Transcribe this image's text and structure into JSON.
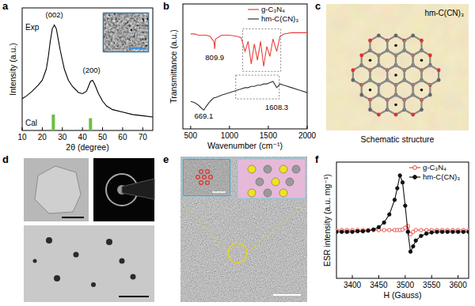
{
  "panel_labels": [
    "a",
    "b",
    "c",
    "d",
    "e",
    "f"
  ],
  "schematic": {
    "title": "hm-C(CN)₃",
    "caption": "Schematic structure"
  },
  "chart_data": [
    {
      "type": "line",
      "x_label": "2θ (degree)",
      "y_label": "Intensity (a.u.)",
      "xlim": [
        10,
        75
      ],
      "xticks": [
        10,
        20,
        30,
        40,
        50,
        60,
        70
      ],
      "ylim": [
        0,
        1
      ],
      "tick_labels": "x",
      "series": [
        {
          "name": "Exp",
          "type": "line",
          "color": "#000000",
          "x": [
            10,
            12,
            15,
            18,
            20,
            22,
            23,
            24,
            25,
            26,
            27,
            28,
            29,
            31,
            33,
            35,
            38,
            40,
            42,
            43,
            44,
            45,
            46,
            47,
            48,
            50,
            52,
            55,
            60,
            65,
            70,
            75
          ],
          "values": [
            0.26,
            0.28,
            0.32,
            0.37,
            0.41,
            0.5,
            0.6,
            0.73,
            0.83,
            0.86,
            0.83,
            0.74,
            0.65,
            0.5,
            0.41,
            0.36,
            0.31,
            0.3,
            0.32,
            0.36,
            0.4,
            0.41,
            0.38,
            0.34,
            0.3,
            0.24,
            0.2,
            0.17,
            0.15,
            0.13,
            0.12,
            0.11
          ]
        },
        {
          "name": "Cal",
          "type": "bar",
          "color": "#6cbf3f",
          "x": [
            25.5,
            44
          ],
          "values": [
            0.13,
            0.1
          ]
        }
      ],
      "annotations": [
        {
          "text": "(002)",
          "x": 26,
          "y": 0.92
        },
        {
          "text": "(200)",
          "x": 44.5,
          "y": 0.47
        }
      ]
    },
    {
      "type": "line",
      "x_label": "Wavenumber (cm⁻¹)",
      "y_label": "Transmittance (a.u.)",
      "xlim": [
        400,
        2000
      ],
      "xticks": [
        500,
        1000,
        1500,
        2000
      ],
      "ylim": [
        0,
        1
      ],
      "tick_labels": "x",
      "legend": "upper right",
      "x": [
        500,
        550,
        600,
        650,
        669.1,
        700,
        750,
        800,
        809.9,
        820,
        900,
        1000,
        1100,
        1150,
        1200,
        1240,
        1280,
        1320,
        1360,
        1400,
        1440,
        1480,
        1520,
        1560,
        1608.3,
        1650,
        1700,
        1800,
        1900,
        2000
      ],
      "series": [
        {
          "name": "g-C₃N₄",
          "color": "#e8413c",
          "values": [
            0.76,
            0.76,
            0.75,
            0.75,
            0.75,
            0.75,
            0.74,
            0.7,
            0.64,
            0.72,
            0.75,
            0.75,
            0.74,
            0.73,
            0.62,
            0.7,
            0.52,
            0.68,
            0.55,
            0.7,
            0.5,
            0.66,
            0.58,
            0.72,
            0.62,
            0.74,
            0.76,
            0.77,
            0.77,
            0.77
          ]
        },
        {
          "name": "hm-C(CN)₃",
          "color": "#333333",
          "values": [
            0.22,
            0.21,
            0.19,
            0.16,
            0.15,
            0.18,
            0.22,
            0.25,
            0.25,
            0.25,
            0.27,
            0.29,
            0.31,
            0.32,
            0.33,
            0.33,
            0.34,
            0.34,
            0.35,
            0.35,
            0.36,
            0.36,
            0.37,
            0.38,
            0.33,
            0.36,
            0.35,
            0.33,
            0.31,
            0.29
          ]
        }
      ],
      "boxes": [
        {
          "x": [
            1170,
            1660
          ],
          "y": [
            0.46,
            0.8
          ]
        },
        {
          "x": [
            1080,
            1640
          ],
          "y": [
            0.24,
            0.43
          ]
        }
      ],
      "annotations": [
        {
          "text": "809.9",
          "x": 809.9,
          "y": 0.55
        },
        {
          "text": "669.1",
          "x": 669.1,
          "y": 0.08
        },
        {
          "text": "1608.3",
          "x": 1608.3,
          "y": 0.15
        }
      ]
    },
    {
      "type": "line",
      "x_label": "H (Gauss)",
      "y_label": "ESR intensity (a.u. mg⁻¹)",
      "xlim": [
        3370,
        3620
      ],
      "xticks": [
        3400,
        3450,
        3500,
        3550,
        3600
      ],
      "ylim": [
        -1,
        1
      ],
      "tick_labels": "x",
      "legend": "upper right",
      "x": [
        3370,
        3380,
        3390,
        3400,
        3410,
        3420,
        3430,
        3440,
        3450,
        3460,
        3470,
        3480,
        3485,
        3490,
        3495,
        3500,
        3505,
        3510,
        3515,
        3520,
        3530,
        3540,
        3550,
        3560,
        3570,
        3580,
        3590,
        3600,
        3610,
        3620
      ],
      "series": [
        {
          "name": "g-C₃N₄",
          "color": "#e8413c",
          "marker": "open-circle",
          "values": [
            -0.17,
            -0.17,
            -0.17,
            -0.17,
            -0.17,
            -0.17,
            -0.17,
            -0.17,
            -0.17,
            -0.17,
            -0.17,
            -0.17,
            -0.17,
            -0.17,
            -0.16,
            -0.13,
            -0.1,
            -0.24,
            -0.2,
            -0.17,
            -0.17,
            -0.17,
            -0.17,
            -0.17,
            -0.17,
            -0.17,
            -0.17,
            -0.17,
            -0.17,
            -0.17
          ]
        },
        {
          "name": "hm-C(CN)₃",
          "color": "#111111",
          "marker": "circle",
          "values": [
            -0.2,
            -0.2,
            -0.2,
            -0.2,
            -0.19,
            -0.19,
            -0.18,
            -0.16,
            -0.12,
            -0.04,
            0.1,
            0.35,
            0.55,
            0.77,
            0.65,
            0.25,
            -0.2,
            -0.54,
            -0.45,
            -0.35,
            -0.27,
            -0.23,
            -0.21,
            -0.2,
            -0.2,
            -0.2,
            -0.2,
            -0.2,
            -0.2,
            -0.2
          ]
        }
      ]
    }
  ]
}
